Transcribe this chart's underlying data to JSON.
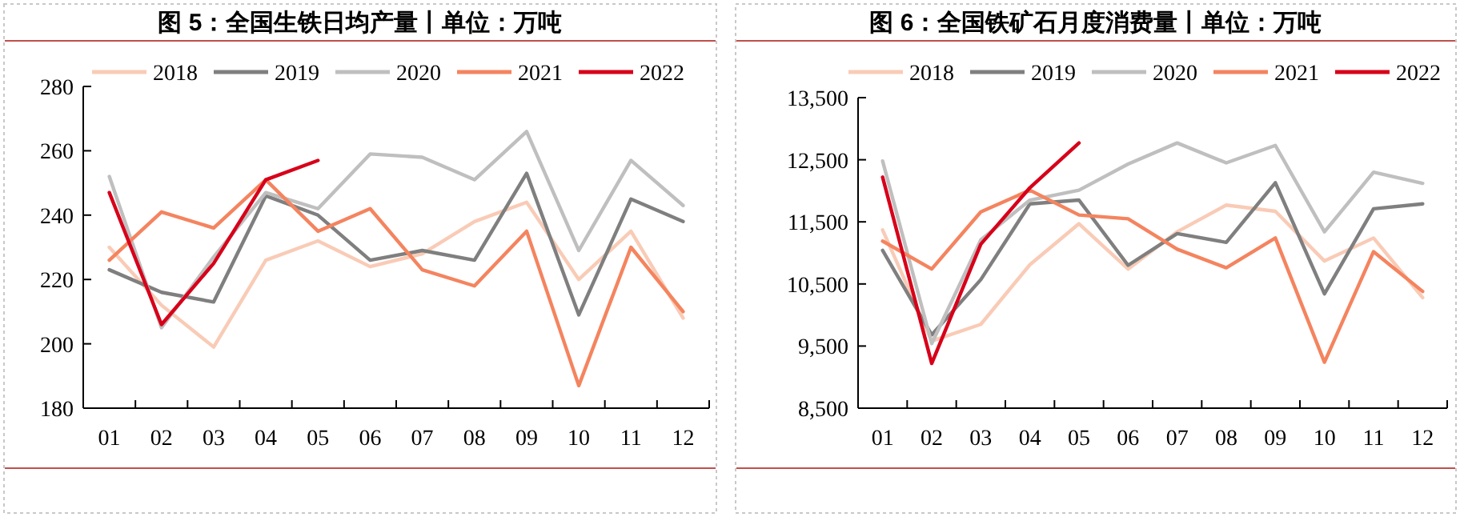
{
  "chart_data": [
    {
      "type": "line",
      "title": "图 5：全国生铁日均产量丨单位：万吨",
      "categories": [
        "01",
        "02",
        "03",
        "04",
        "05",
        "06",
        "07",
        "08",
        "09",
        "10",
        "11",
        "12"
      ],
      "ylim": [
        180,
        280
      ],
      "yticks": [
        180,
        200,
        220,
        240,
        260,
        280
      ],
      "legend": "top",
      "series": [
        {
          "name": "2018",
          "color": "#f9cbb6",
          "values": [
            230,
            212,
            199,
            226,
            232,
            224,
            228,
            238,
            244,
            220,
            235,
            208
          ]
        },
        {
          "name": "2019",
          "color": "#7f7f7f",
          "values": [
            223,
            216,
            213,
            246,
            240,
            226,
            229,
            226,
            253,
            209,
            245,
            238
          ]
        },
        {
          "name": "2020",
          "color": "#bfbfbf",
          "values": [
            252,
            205,
            227,
            247,
            242,
            259,
            258,
            251,
            266,
            229,
            257,
            243
          ]
        },
        {
          "name": "2021",
          "color": "#f4845f",
          "values": [
            226,
            241,
            236,
            251,
            235,
            242,
            223,
            218,
            235,
            187,
            230,
            210
          ]
        },
        {
          "name": "2022",
          "color": "#d7001a",
          "values": [
            247,
            206,
            225,
            251,
            257,
            null,
            null,
            null,
            null,
            null,
            null,
            null
          ]
        }
      ]
    },
    {
      "type": "line",
      "title": "图 6：全国铁矿石月度消费量丨单位：万吨",
      "categories": [
        "01",
        "02",
        "03",
        "04",
        "05",
        "06",
        "07",
        "08",
        "09",
        "10",
        "11",
        "12"
      ],
      "ylim": [
        8500,
        13500
      ],
      "yticks": [
        {
          "value": 8500,
          "label": "8,500"
        },
        {
          "value": 9500,
          "label": "9,500"
        },
        {
          "value": 10500,
          "label": "10,500"
        },
        {
          "value": 11500,
          "label": "11,500"
        },
        {
          "value": 12500,
          "label": "12,500"
        },
        {
          "value": 13500,
          "label": "13,500"
        }
      ],
      "legend": "top",
      "series": [
        {
          "name": "2018",
          "color": "#f9cbb6",
          "values": [
            11370,
            9580,
            9850,
            10810,
            11470,
            10740,
            11340,
            11770,
            11670,
            10870,
            11240,
            10280
          ]
        },
        {
          "name": "2019",
          "color": "#7f7f7f",
          "values": [
            11040,
            9680,
            10570,
            11790,
            11850,
            10800,
            11310,
            11170,
            12130,
            10340,
            11710,
            11790
          ]
        },
        {
          "name": "2020",
          "color": "#bfbfbf",
          "values": [
            12480,
            9540,
            11210,
            11850,
            12010,
            12430,
            12770,
            12450,
            12730,
            11340,
            12300,
            12120
          ]
        },
        {
          "name": "2021",
          "color": "#f4845f",
          "values": [
            11190,
            10740,
            11660,
            12010,
            11610,
            11550,
            11060,
            10760,
            11240,
            9240,
            11020,
            10380
          ]
        },
        {
          "name": "2022",
          "color": "#d7001a",
          "values": [
            12220,
            9220,
            11140,
            12050,
            12770,
            null,
            null,
            null,
            null,
            null,
            null,
            null
          ]
        }
      ]
    }
  ]
}
